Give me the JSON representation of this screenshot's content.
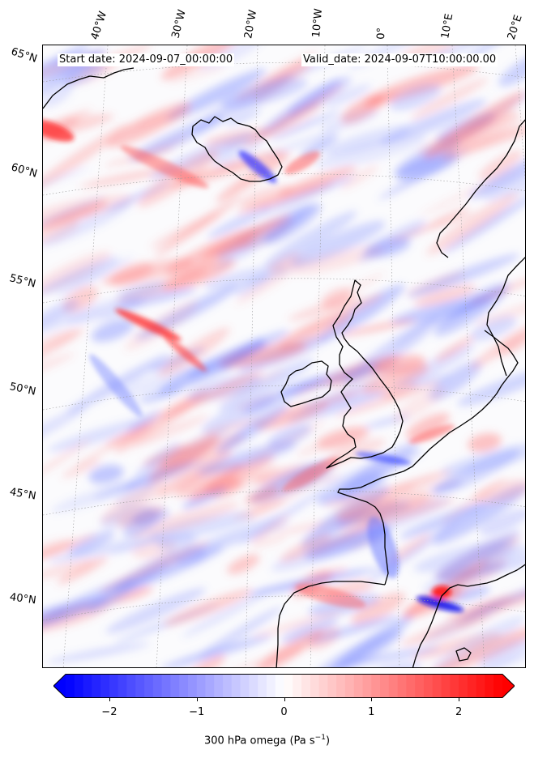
{
  "header": {
    "start_date": "Start date: 2024-09-07_00:00:00",
    "valid_date": "Valid_date: 2024-09-07T10:00:00.00"
  },
  "gridlines": {
    "longitude_labels": [
      "40°W",
      "30°W",
      "20°W",
      "10°W",
      "0°",
      "10°E",
      "20°E"
    ],
    "latitude_labels": [
      "65°N",
      "60°N",
      "55°N",
      "50°N",
      "45°N",
      "40°N"
    ]
  },
  "colorbar": {
    "label_text": "300 hPa omega (Pa s",
    "label_exponent": "−1",
    "label_close": ")",
    "ticks": [
      "−2",
      "−1",
      "0",
      "1",
      "2"
    ],
    "tick_values": [
      -2,
      -1,
      0,
      1,
      2
    ],
    "range": [
      -2.5,
      2.5
    ],
    "extend": "both",
    "colormap": "bwr",
    "colors": {
      "min": "#0000ff",
      "mid": "#ffffff",
      "max": "#ff0000"
    }
  },
  "map": {
    "projection": "Lambert conformal",
    "coastline_color": "#000000",
    "gridline_style": "dotted grey"
  }
}
